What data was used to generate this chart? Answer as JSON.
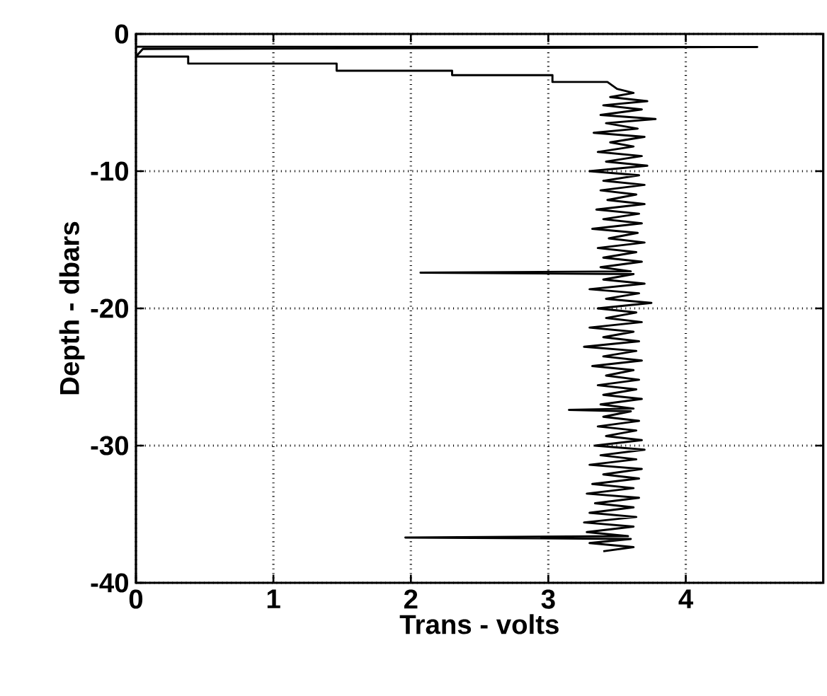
{
  "chart_data": {
    "type": "line",
    "xlabel": "Trans - volts",
    "ylabel": "Depth - dbars",
    "xlim": [
      0,
      5
    ],
    "ylim": [
      -40,
      0
    ],
    "xticks": [
      0,
      1,
      2,
      3,
      4
    ],
    "yticks": [
      -40,
      -30,
      -20,
      -10,
      0
    ],
    "grid": true,
    "marker": "none",
    "line_style": "solid",
    "series": [
      {
        "color": "#000000",
        "x": [
          0,
          4.52,
          0.05,
          0,
          0.38,
          0.38,
          1.46,
          1.46,
          2.3,
          2.3,
          3.03,
          3.03,
          3.43,
          3.5,
          3.62,
          3.45,
          3.72,
          3.4,
          3.68,
          3.38,
          3.78,
          3.42,
          3.65,
          3.33,
          3.7,
          3.45,
          3.62,
          3.36,
          3.68,
          3.42,
          3.72,
          3.3,
          3.66,
          3.4,
          3.7,
          3.38,
          3.64,
          3.43,
          3.7,
          3.35,
          3.66,
          3.4,
          3.68,
          3.32,
          3.65,
          3.44,
          3.7,
          3.36,
          3.64,
          3.4,
          3.68,
          3.38,
          3.6,
          2.07,
          3.62,
          3.4,
          3.7,
          3.3,
          3.66,
          3.42,
          3.75,
          3.36,
          3.64,
          3.42,
          3.68,
          3.3,
          3.62,
          3.4,
          3.66,
          3.26,
          3.64,
          3.4,
          3.68,
          3.32,
          3.62,
          3.42,
          3.66,
          3.36,
          3.64,
          3.4,
          3.68,
          3.38,
          3.62,
          3.15,
          3.6,
          3.4,
          3.66,
          3.36,
          3.64,
          3.42,
          3.68,
          3.34,
          3.7,
          3.38,
          3.64,
          3.3,
          3.68,
          3.4,
          3.66,
          3.32,
          3.62,
          3.28,
          3.66,
          3.34,
          3.62,
          3.3,
          3.64,
          3.26,
          3.62,
          3.28,
          3.58,
          1.96,
          3.6,
          3.3,
          3.62,
          3.4
        ],
        "values": [
          -0.93,
          -0.95,
          -1.1,
          -1.65,
          -1.65,
          -2.16,
          -2.16,
          -2.68,
          -2.68,
          -3.0,
          -3.0,
          -3.5,
          -3.5,
          -4.0,
          -4.3,
          -4.6,
          -4.9,
          -5.2,
          -5.5,
          -5.9,
          -6.2,
          -6.5,
          -6.9,
          -7.2,
          -7.5,
          -7.9,
          -8.2,
          -8.6,
          -8.9,
          -9.3,
          -9.6,
          -10.0,
          -10.3,
          -10.7,
          -11.0,
          -11.4,
          -11.7,
          -12.1,
          -12.4,
          -12.8,
          -13.1,
          -13.5,
          -13.8,
          -14.2,
          -14.5,
          -14.9,
          -15.2,
          -15.6,
          -15.9,
          -16.3,
          -16.6,
          -17.0,
          -17.3,
          -17.4,
          -17.5,
          -17.9,
          -18.2,
          -18.6,
          -18.9,
          -19.3,
          -19.6,
          -20.0,
          -20.3,
          -20.7,
          -21.0,
          -21.4,
          -21.7,
          -22.1,
          -22.4,
          -22.8,
          -23.1,
          -23.5,
          -23.8,
          -24.2,
          -24.5,
          -24.9,
          -25.2,
          -25.6,
          -25.9,
          -26.3,
          -26.6,
          -27.0,
          -27.3,
          -27.4,
          -27.5,
          -27.9,
          -28.2,
          -28.6,
          -28.9,
          -29.3,
          -29.6,
          -30.0,
          -30.3,
          -30.7,
          -31.0,
          -31.4,
          -31.7,
          -32.1,
          -32.4,
          -32.8,
          -33.1,
          -33.5,
          -33.8,
          -34.2,
          -34.5,
          -34.9,
          -35.2,
          -35.6,
          -35.9,
          -36.3,
          -36.6,
          -36.7,
          -36.8,
          -37.1,
          -37.4,
          -37.7
        ]
      }
    ]
  }
}
